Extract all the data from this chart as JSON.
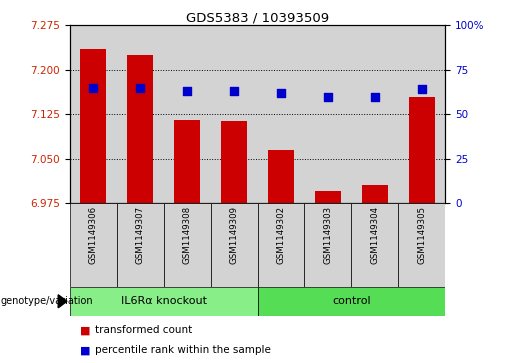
{
  "title": "GDS5383 / 10393509",
  "samples": [
    "GSM1149306",
    "GSM1149307",
    "GSM1149308",
    "GSM1149309",
    "GSM1149302",
    "GSM1149303",
    "GSM1149304",
    "GSM1149305"
  ],
  "bar_values": [
    7.235,
    7.225,
    7.115,
    7.113,
    7.065,
    6.995,
    7.005,
    7.155
  ],
  "percentile_values": [
    65,
    65,
    63,
    63,
    62,
    60,
    60,
    64
  ],
  "ylim_left": [
    6.975,
    7.275
  ],
  "ylim_right": [
    0,
    100
  ],
  "yticks_left": [
    6.975,
    7.05,
    7.125,
    7.2,
    7.275
  ],
  "yticks_right": [
    0,
    25,
    50,
    75,
    100
  ],
  "bar_color": "#cc0000",
  "dot_color": "#0000cc",
  "tick_label_color_left": "#cc2200",
  "tick_label_color_right": "#0000cc",
  "groups": [
    {
      "label": "IL6Rα knockout",
      "indices": [
        0,
        1,
        2,
        3
      ],
      "color": "#88ee88"
    },
    {
      "label": "control",
      "indices": [
        4,
        5,
        6,
        7
      ],
      "color": "#55dd55"
    }
  ],
  "genotype_label": "genotype/variation",
  "legend_items": [
    {
      "color": "#cc0000",
      "label": "transformed count"
    },
    {
      "color": "#0000cc",
      "label": "percentile rank within the sample"
    }
  ],
  "bar_width": 0.55,
  "dot_size": 28,
  "col_bg_color": "#d3d3d3",
  "right_tick_labels": [
    "0",
    "25",
    "50",
    "75",
    "100%"
  ]
}
